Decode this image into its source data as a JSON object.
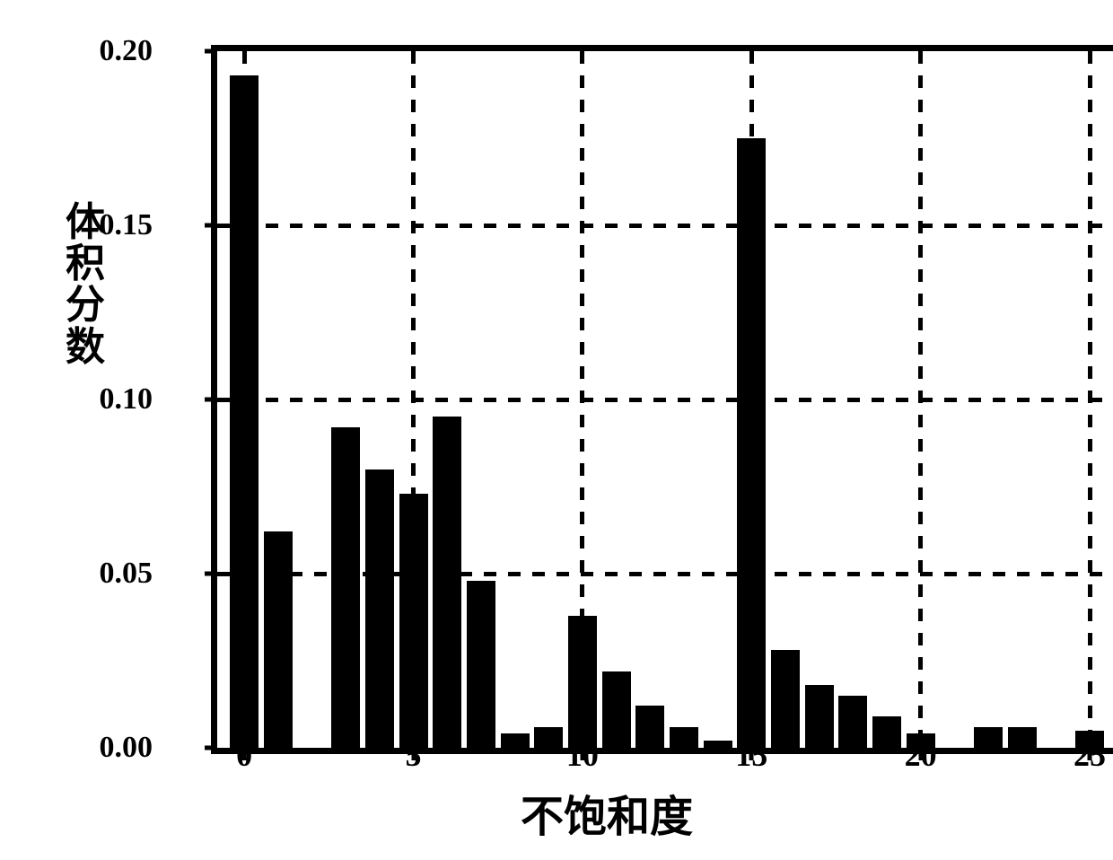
{
  "chart": {
    "type": "histogram",
    "y_label": "体积分数",
    "x_label": "不饱和度",
    "background_color": "#ffffff",
    "bar_color": "#000000",
    "border_color": "#000000",
    "border_width": 7,
    "grid_color": "#000000",
    "grid_dash": [
      14,
      13
    ],
    "title_fontsize": 48,
    "label_fontsize": 44,
    "tick_fontsize": 36,
    "ylim": [
      0,
      0.2
    ],
    "xlim": [
      -0.8,
      26.3
    ],
    "ytick_step": 0.05,
    "xtick_step": 5,
    "y_ticks": [
      {
        "value": 0.0,
        "label": "0.00"
      },
      {
        "value": 0.05,
        "label": "0.05"
      },
      {
        "value": 0.1,
        "label": "0.10"
      },
      {
        "value": 0.15,
        "label": "0.15"
      },
      {
        "value": 0.2,
        "label": "0.20"
      }
    ],
    "x_ticks": [
      {
        "value": 0,
        "label": "0"
      },
      {
        "value": 5,
        "label": "5"
      },
      {
        "value": 10,
        "label": "10"
      },
      {
        "value": 15,
        "label": "15"
      },
      {
        "value": 20,
        "label": "20"
      },
      {
        "value": 25,
        "label": "25"
      }
    ],
    "bar_width": 0.85,
    "data": [
      {
        "x": 0,
        "y": 0.193
      },
      {
        "x": 1,
        "y": 0.062
      },
      {
        "x": 2,
        "y": 0.0
      },
      {
        "x": 3,
        "y": 0.092
      },
      {
        "x": 4,
        "y": 0.08
      },
      {
        "x": 5,
        "y": 0.073
      },
      {
        "x": 6,
        "y": 0.095
      },
      {
        "x": 7,
        "y": 0.048
      },
      {
        "x": 8,
        "y": 0.004
      },
      {
        "x": 9,
        "y": 0.006
      },
      {
        "x": 10,
        "y": 0.038
      },
      {
        "x": 11,
        "y": 0.022
      },
      {
        "x": 12,
        "y": 0.012
      },
      {
        "x": 13,
        "y": 0.006
      },
      {
        "x": 14,
        "y": 0.002
      },
      {
        "x": 15,
        "y": 0.175
      },
      {
        "x": 16,
        "y": 0.028
      },
      {
        "x": 17,
        "y": 0.018
      },
      {
        "x": 18,
        "y": 0.015
      },
      {
        "x": 19,
        "y": 0.009
      },
      {
        "x": 20,
        "y": 0.004
      },
      {
        "x": 21,
        "y": 0.0
      },
      {
        "x": 22,
        "y": 0.006
      },
      {
        "x": 23,
        "y": 0.006
      },
      {
        "x": 24,
        "y": 0.0
      },
      {
        "x": 25,
        "y": 0.005
      }
    ]
  }
}
